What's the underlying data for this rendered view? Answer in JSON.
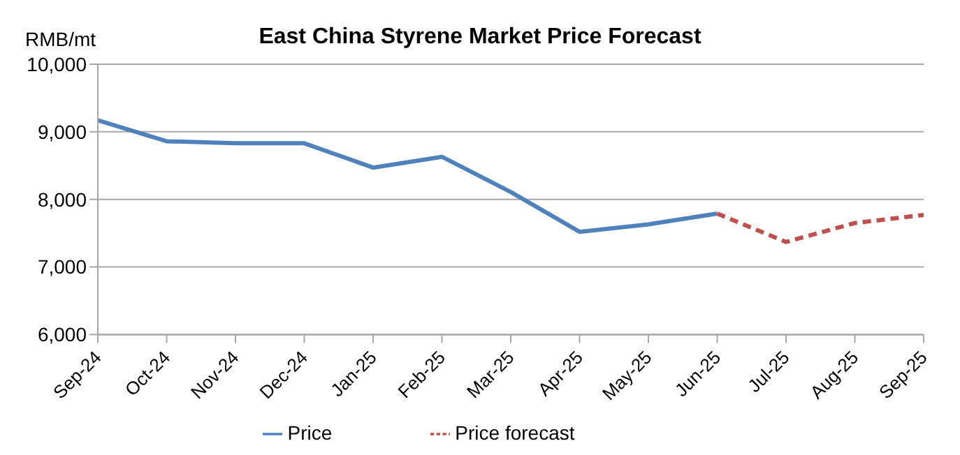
{
  "chart_data": {
    "type": "line",
    "title": "East China Styrene Market Price Forecast",
    "ylabel": "RMB/mt",
    "categories": [
      "Sep-24",
      "Oct-24",
      "Nov-24",
      "Dec-24",
      "Jan-25",
      "Feb-25",
      "Mar-25",
      "Apr-25",
      "May-25",
      "Jun-25",
      "Jul-25",
      "Aug-25",
      "Sep-25"
    ],
    "series": [
      {
        "name": "Price",
        "color": "#4f81bd",
        "line_style": "solid",
        "values": [
          9170,
          8860,
          8830,
          8830,
          8470,
          8630,
          8110,
          7520,
          7630,
          7790,
          null,
          null,
          null
        ]
      },
      {
        "name": "Price forecast",
        "color": "#c0504d",
        "line_style": "dashed",
        "values": [
          null,
          null,
          null,
          null,
          null,
          null,
          null,
          null,
          null,
          7790,
          7370,
          7650,
          7770
        ]
      }
    ],
    "ylim": [
      6000,
      10000
    ],
    "yticks": [
      {
        "value": 6000,
        "label": "6,000"
      },
      {
        "value": 7000,
        "label": "7,000"
      },
      {
        "value": 8000,
        "label": "8,000"
      },
      {
        "value": 9000,
        "label": "9,000"
      },
      {
        "value": 10000,
        "label": "10,000"
      }
    ],
    "grid": "y",
    "legend": "bottom",
    "marker": "none"
  }
}
